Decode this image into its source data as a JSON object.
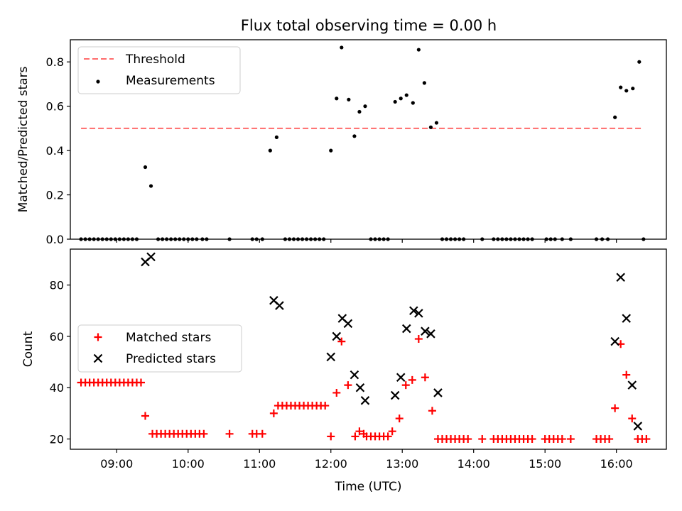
{
  "chart_data": [
    {
      "type": "scatter",
      "title": "Flux total observing time = 0.00 h",
      "ylabel": "Matched/Predicted stars",
      "xlabel": "",
      "xlim": [
        8.35,
        16.7
      ],
      "ylim": [
        0,
        0.9
      ],
      "yticks": [
        0.0,
        0.2,
        0.4,
        0.6,
        0.8
      ],
      "ytick_labels": [
        "0.0",
        "0.2",
        "0.4",
        "0.6",
        "0.8"
      ],
      "xticks": [
        9,
        10,
        11,
        12,
        13,
        14,
        15,
        16
      ],
      "grid": false,
      "legend_position": "top-left",
      "threshold": {
        "name": "Threshold",
        "y": 0.5,
        "x": [
          8.5,
          16.35
        ],
        "color": "#ff6b6b",
        "style": "dashed"
      },
      "series": [
        {
          "name": "Measurements",
          "color": "#000000",
          "marker": "dot",
          "points": [
            [
              8.5,
              0
            ],
            [
              8.56,
              0
            ],
            [
              8.62,
              0
            ],
            [
              8.68,
              0
            ],
            [
              8.74,
              0
            ],
            [
              8.8,
              0
            ],
            [
              8.86,
              0
            ],
            [
              8.92,
              0
            ],
            [
              8.98,
              0
            ],
            [
              9.04,
              0
            ],
            [
              9.1,
              0
            ],
            [
              9.16,
              0
            ],
            [
              9.22,
              0
            ],
            [
              9.28,
              0
            ],
            [
              9.4,
              0.325
            ],
            [
              9.48,
              0.24
            ],
            [
              9.58,
              0
            ],
            [
              9.64,
              0
            ],
            [
              9.7,
              0
            ],
            [
              9.76,
              0
            ],
            [
              9.82,
              0
            ],
            [
              9.88,
              0
            ],
            [
              9.94,
              0
            ],
            [
              10.0,
              0
            ],
            [
              10.06,
              0
            ],
            [
              10.12,
              0
            ],
            [
              10.2,
              0
            ],
            [
              10.26,
              0
            ],
            [
              10.58,
              0
            ],
            [
              10.9,
              0
            ],
            [
              10.96,
              0
            ],
            [
              11.04,
              0
            ],
            [
              11.15,
              0.4
            ],
            [
              11.24,
              0.46
            ],
            [
              11.36,
              0
            ],
            [
              11.42,
              0
            ],
            [
              11.48,
              0
            ],
            [
              11.54,
              0
            ],
            [
              11.6,
              0
            ],
            [
              11.66,
              0
            ],
            [
              11.72,
              0
            ],
            [
              11.78,
              0
            ],
            [
              11.84,
              0
            ],
            [
              11.9,
              0
            ],
            [
              12.0,
              0.4
            ],
            [
              12.08,
              0.635
            ],
            [
              12.15,
              0.865
            ],
            [
              12.25,
              0.63
            ],
            [
              12.33,
              0.465
            ],
            [
              12.4,
              0.575
            ],
            [
              12.48,
              0.6
            ],
            [
              12.56,
              0
            ],
            [
              12.62,
              0
            ],
            [
              12.68,
              0
            ],
            [
              12.74,
              0
            ],
            [
              12.8,
              0
            ],
            [
              12.9,
              0.62
            ],
            [
              12.98,
              0.635
            ],
            [
              13.06,
              0.65
            ],
            [
              13.15,
              0.615
            ],
            [
              13.23,
              0.855
            ],
            [
              13.31,
              0.705
            ],
            [
              13.4,
              0.505
            ],
            [
              13.48,
              0.525
            ],
            [
              13.56,
              0
            ],
            [
              13.62,
              0
            ],
            [
              13.68,
              0
            ],
            [
              13.74,
              0
            ],
            [
              13.8,
              0
            ],
            [
              13.86,
              0
            ],
            [
              14.12,
              0
            ],
            [
              14.28,
              0
            ],
            [
              14.34,
              0
            ],
            [
              14.4,
              0
            ],
            [
              14.46,
              0
            ],
            [
              14.52,
              0
            ],
            [
              14.58,
              0
            ],
            [
              14.64,
              0
            ],
            [
              14.7,
              0
            ],
            [
              14.76,
              0
            ],
            [
              14.82,
              0
            ],
            [
              15.02,
              0
            ],
            [
              15.08,
              0
            ],
            [
              15.14,
              0
            ],
            [
              15.24,
              0
            ],
            [
              15.36,
              0
            ],
            [
              15.72,
              0
            ],
            [
              15.8,
              0
            ],
            [
              15.88,
              0
            ],
            [
              15.98,
              0.55
            ],
            [
              16.06,
              0.685
            ],
            [
              16.14,
              0.67
            ],
            [
              16.23,
              0.68
            ],
            [
              16.32,
              0.8
            ],
            [
              16.38,
              0
            ]
          ]
        }
      ]
    },
    {
      "type": "scatter",
      "title": "",
      "ylabel": "Count",
      "xlabel": "Time (UTC)",
      "xlim": [
        8.35,
        16.7
      ],
      "ylim": [
        16,
        94
      ],
      "yticks": [
        20,
        40,
        60,
        80
      ],
      "ytick_labels": [
        "20",
        "40",
        "60",
        "80"
      ],
      "xticks": [
        9,
        10,
        11,
        12,
        13,
        14,
        15,
        16
      ],
      "xtick_labels": [
        "09:00",
        "10:00",
        "11:00",
        "12:00",
        "13:00",
        "14:00",
        "15:00",
        "16:00"
      ],
      "grid": false,
      "legend_position": "center-left",
      "series": [
        {
          "name": "Matched stars",
          "color": "#ff0000",
          "marker": "plus",
          "points": [
            [
              8.5,
              42
            ],
            [
              8.56,
              42
            ],
            [
              8.62,
              42
            ],
            [
              8.68,
              42
            ],
            [
              8.74,
              42
            ],
            [
              8.8,
              42
            ],
            [
              8.86,
              42
            ],
            [
              8.92,
              42
            ],
            [
              8.98,
              42
            ],
            [
              9.04,
              42
            ],
            [
              9.1,
              42
            ],
            [
              9.16,
              42
            ],
            [
              9.22,
              42
            ],
            [
              9.28,
              42
            ],
            [
              9.34,
              42
            ],
            [
              9.4,
              29
            ],
            [
              9.5,
              22
            ],
            [
              9.56,
              22
            ],
            [
              9.62,
              22
            ],
            [
              9.68,
              22
            ],
            [
              9.74,
              22
            ],
            [
              9.8,
              22
            ],
            [
              9.86,
              22
            ],
            [
              9.92,
              22
            ],
            [
              9.98,
              22
            ],
            [
              10.04,
              22
            ],
            [
              10.1,
              22
            ],
            [
              10.16,
              22
            ],
            [
              10.22,
              22
            ],
            [
              10.58,
              22
            ],
            [
              10.9,
              22
            ],
            [
              10.96,
              22
            ],
            [
              11.04,
              22
            ],
            [
              11.2,
              30
            ],
            [
              11.26,
              33
            ],
            [
              11.32,
              33
            ],
            [
              11.38,
              33
            ],
            [
              11.44,
              33
            ],
            [
              11.5,
              33
            ],
            [
              11.56,
              33
            ],
            [
              11.62,
              33
            ],
            [
              11.68,
              33
            ],
            [
              11.74,
              33
            ],
            [
              11.8,
              33
            ],
            [
              11.86,
              33
            ],
            [
              11.92,
              33
            ],
            [
              12.0,
              21
            ],
            [
              12.08,
              38
            ],
            [
              12.15,
              58
            ],
            [
              12.24,
              41
            ],
            [
              12.34,
              21
            ],
            [
              12.4,
              23
            ],
            [
              12.46,
              22
            ],
            [
              12.5,
              21
            ],
            [
              12.56,
              21
            ],
            [
              12.62,
              21
            ],
            [
              12.68,
              21
            ],
            [
              12.74,
              21
            ],
            [
              12.8,
              21
            ],
            [
              12.86,
              23
            ],
            [
              12.96,
              28
            ],
            [
              13.05,
              41
            ],
            [
              13.14,
              43
            ],
            [
              13.23,
              59
            ],
            [
              13.32,
              44
            ],
            [
              13.42,
              31
            ],
            [
              13.5,
              20
            ],
            [
              13.56,
              20
            ],
            [
              13.62,
              20
            ],
            [
              13.68,
              20
            ],
            [
              13.74,
              20
            ],
            [
              13.8,
              20
            ],
            [
              13.86,
              20
            ],
            [
              13.92,
              20
            ],
            [
              14.12,
              20
            ],
            [
              14.28,
              20
            ],
            [
              14.34,
              20
            ],
            [
              14.4,
              20
            ],
            [
              14.46,
              20
            ],
            [
              14.52,
              20
            ],
            [
              14.58,
              20
            ],
            [
              14.64,
              20
            ],
            [
              14.7,
              20
            ],
            [
              14.76,
              20
            ],
            [
              14.82,
              20
            ],
            [
              15.0,
              20
            ],
            [
              15.06,
              20
            ],
            [
              15.12,
              20
            ],
            [
              15.18,
              20
            ],
            [
              15.24,
              20
            ],
            [
              15.36,
              20
            ],
            [
              15.72,
              20
            ],
            [
              15.78,
              20
            ],
            [
              15.84,
              20
            ],
            [
              15.9,
              20
            ],
            [
              15.98,
              32
            ],
            [
              16.06,
              57
            ],
            [
              16.14,
              45
            ],
            [
              16.22,
              28
            ],
            [
              16.3,
              20
            ],
            [
              16.36,
              20
            ],
            [
              16.42,
              20
            ]
          ]
        },
        {
          "name": "Predicted stars",
          "color": "#000000",
          "marker": "x",
          "points": [
            [
              9.4,
              89
            ],
            [
              9.48,
              91
            ],
            [
              11.2,
              74
            ],
            [
              11.28,
              72
            ],
            [
              12.0,
              52
            ],
            [
              12.08,
              60
            ],
            [
              12.16,
              67
            ],
            [
              12.24,
              65
            ],
            [
              12.33,
              45
            ],
            [
              12.41,
              40
            ],
            [
              12.48,
              35
            ],
            [
              12.9,
              37
            ],
            [
              12.98,
              44
            ],
            [
              13.06,
              63
            ],
            [
              13.16,
              70
            ],
            [
              13.23,
              69
            ],
            [
              13.32,
              62
            ],
            [
              13.4,
              61
            ],
            [
              13.5,
              38
            ],
            [
              15.98,
              58
            ],
            [
              16.06,
              83
            ],
            [
              16.14,
              67
            ],
            [
              16.22,
              41
            ],
            [
              16.3,
              25
            ]
          ]
        }
      ]
    }
  ]
}
